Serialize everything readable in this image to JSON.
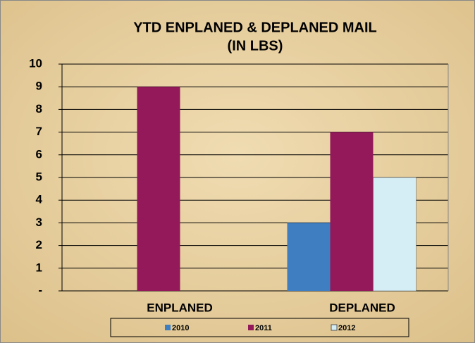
{
  "chart_data": {
    "type": "bar",
    "title": [
      "YTD ENPLANED & DEPLANED MAIL",
      "(IN LBS)"
    ],
    "categories": [
      "ENPLANED",
      "DEPLANED"
    ],
    "series": [
      {
        "name": "2010",
        "color": "#3f7fc1",
        "values": [
          0,
          3
        ]
      },
      {
        "name": "2011",
        "color": "#93195a",
        "values": [
          9,
          7
        ]
      },
      {
        "name": "2012",
        "color": "#d5eef6",
        "values": [
          0,
          5
        ]
      }
    ],
    "ylim": [
      0,
      10
    ],
    "yticks": [
      {
        "value": 0,
        "label": "-"
      },
      1,
      2,
      3,
      4,
      5,
      6,
      7,
      8,
      9,
      10
    ],
    "grid": true,
    "legend": "bottom"
  }
}
